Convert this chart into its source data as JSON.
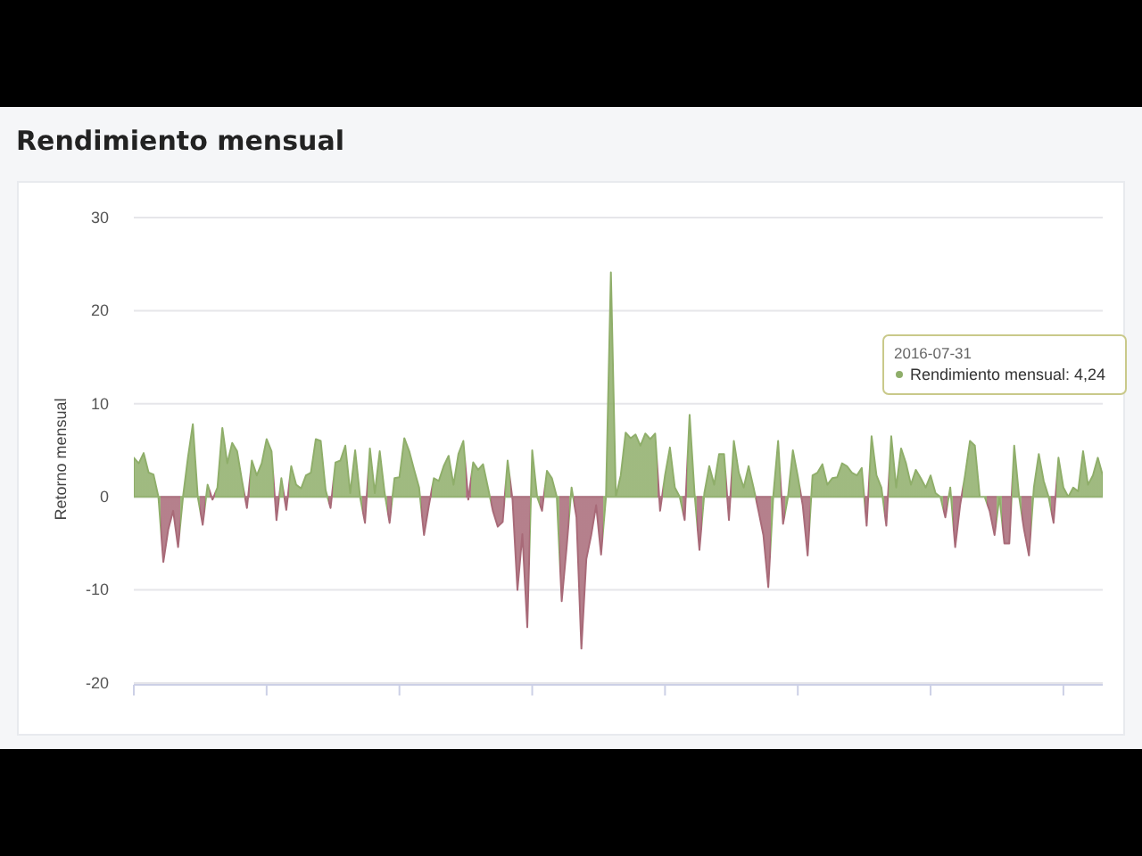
{
  "chart_data": {
    "type": "area",
    "title": "Rendimiento mensual",
    "ylabel": "Retorno mensual",
    "ylim": [
      -20,
      30
    ],
    "yticks": [
      -20,
      -10,
      0,
      10,
      20,
      30
    ],
    "grid": "y",
    "annotations": [
      "2016-07-31",
      "Rendimiento mensual: 4,24"
    ],
    "series": [
      {
        "colors": [
          "#8fae6a",
          "#8fae6a",
          "#8fae6a",
          "#8fae6a",
          "#8fae6a",
          "#8fae6a",
          "#a86a78",
          "#a86a78",
          "#a86a78",
          "#a86a78",
          "#8fae6a",
          "#8fae6a",
          "#8fae6a",
          "#8fae6a",
          "#a86a78",
          "#8fae6a",
          "#a86a78",
          "#8fae6a",
          "#8fae6a",
          "#8fae6a",
          "#8fae6a",
          "#8fae6a",
          "#8fae6a",
          "#a86a78",
          "#8fae6a",
          "#8fae6a",
          "#8fae6a",
          "#8fae6a",
          "#8fae6a",
          "#a86a78",
          "#8fae6a",
          "#a86a78",
          "#8fae6a",
          "#8fae6a",
          "#8fae6a",
          "#8fae6a",
          "#8fae6a",
          "#8fae6a",
          "#8fae6a",
          "#8fae6a",
          "#a86a78",
          "#8fae6a",
          "#8fae6a",
          "#8fae6a",
          "#8fae6a",
          "#8fae6a",
          "#8fae6a",
          "#a86a78",
          "#8fae6a",
          "#8fae6a",
          "#8fae6a",
          "#8fae6a",
          "#a86a78",
          "#8fae6a",
          "#8fae6a",
          "#8fae6a",
          "#8fae6a",
          "#8fae6a",
          "#8fae6a",
          "#a86a78",
          "#a86a78",
          "#8fae6a",
          "#8fae6a",
          "#8fae6a",
          "#8fae6a",
          "#8fae6a",
          "#8fae6a",
          "#8fae6a",
          "#a86a78",
          "#8fae6a",
          "#8fae6a",
          "#8fae6a",
          "#8fae6a",
          "#a86a78",
          "#a86a78",
          "#a86a78",
          "#8fae6a",
          "#a86a78",
          "#a86a78",
          "#a86a78",
          "#a86a78",
          "#8fae6a",
          "#8fae6a",
          "#a86a78",
          "#8fae6a",
          "#8fae6a",
          "#8fae6a",
          "#a86a78",
          "#a86a78",
          "#8fae6a",
          "#a86a78",
          "#a86a78",
          "#a86a78",
          "#a86a78",
          "#a86a78",
          "#a86a78",
          "#8fae6a",
          "#8fae6a",
          "#8fae6a",
          "#8fae6a",
          "#8fae6a",
          "#8fae6a",
          "#8fae6a",
          "#8fae6a",
          "#8fae6a",
          "#8fae6a",
          "#8fae6a",
          "#a86a78",
          "#8fae6a",
          "#8fae6a",
          "#8fae6a",
          "#8fae6a",
          "#a86a78",
          "#8fae6a",
          "#8fae6a",
          "#a86a78",
          "#8fae6a",
          "#8fae6a",
          "#8fae6a",
          "#8fae6a",
          "#8fae6a",
          "#a86a78",
          "#8fae6a",
          "#8fae6a",
          "#8fae6a",
          "#8fae6a",
          "#8fae6a",
          "#a86a78",
          "#a86a78",
          "#a86a78",
          "#8fae6a",
          "#8fae6a",
          "#a86a78",
          "#8fae6a",
          "#8fae6a",
          "#8fae6a",
          "#a86a78",
          "#a86a78",
          "#8fae6a",
          "#8fae6a",
          "#8fae6a",
          "#8fae6a",
          "#8fae6a",
          "#8fae6a",
          "#8fae6a",
          "#8fae6a",
          "#8fae6a",
          "#8fae6a",
          "#8fae6a",
          "#a86a78",
          "#8fae6a",
          "#8fae6a",
          "#8fae6a",
          "#a86a78",
          "#8fae6a",
          "#8fae6a",
          "#8fae6a",
          "#8fae6a",
          "#8fae6a",
          "#8fae6a",
          "#8fae6a",
          "#8fae6a",
          "#8fae6a",
          "#8fae6a",
          "#8fae6a",
          "#a86a78",
          "#8fae6a",
          "#a86a78",
          "#a86a78",
          "#8fae6a",
          "#8fae6a",
          "#8fae6a",
          "#8fae6a",
          "#8fae6a",
          "#a86a78",
          "#a86a78",
          "#8fae6a",
          "#a86a78",
          "#a86a78",
          "#8fae6a",
          "#8fae6a",
          "#a86a78",
          "#a86a78",
          "#8fae6a",
          "#8fae6a",
          "#8fae6a",
          "#8fae6a",
          "#a86a78",
          "#8fae6a",
          "#8fae6a",
          "#8fae6a",
          "#8fae6a",
          "#8fae6a",
          "#8fae6a",
          "#8fae6a",
          "#8fae6a",
          "#8fae6a",
          "#8fae6a"
        ],
        "values": [
          4.2,
          3.6,
          4.7,
          2.6,
          2.4,
          0,
          -7,
          -3.5,
          -1.5,
          -5.4,
          0,
          4.2,
          7.8,
          0,
          -3,
          1.3,
          -0.3,
          1,
          7.4,
          3.6,
          5.8,
          4.9,
          1.7,
          -1.2,
          3.9,
          2.3,
          3.6,
          6.2,
          4.9,
          -2.5,
          2,
          -1.4,
          3.3,
          1.3,
          0.9,
          2.3,
          2.6,
          6.2,
          6,
          0.7,
          -1.2,
          3.7,
          3.9,
          5.5,
          0.4,
          5,
          0,
          -2.8,
          5.2,
          0.4,
          4.9,
          0.4,
          -2.8,
          2,
          2.1,
          6.3,
          4.9,
          2.9,
          1,
          -4.1,
          -0.9,
          2,
          1.7,
          3.3,
          4.4,
          1.3,
          4.6,
          6,
          -0.3,
          3.7,
          2.9,
          3.5,
          1,
          -1.5,
          -3.2,
          -2.7,
          3.9,
          -0.3,
          -10,
          -4,
          -14,
          5,
          0,
          -1.5,
          2.8,
          2,
          0,
          -11.2,
          -5.4,
          1,
          -2.2,
          -16.3,
          -6.7,
          -4.1,
          -0.9,
          -6.2,
          0,
          24.1,
          0,
          2.3,
          6.9,
          6.3,
          6.7,
          5.5,
          6.8,
          6.2,
          6.8,
          -1.5,
          2.3,
          5.3,
          1,
          0,
          -2.5,
          8.8,
          0.4,
          -5.7,
          0.4,
          3.3,
          1.3,
          4.6,
          4.6,
          -2.5,
          6,
          2.6,
          1,
          3.3,
          1,
          -1.5,
          -4.1,
          -9.7,
          0,
          6,
          -2.9,
          0,
          5,
          2.2,
          -0.9,
          -6.3,
          2.3,
          2.6,
          3.5,
          1.3,
          2,
          2.1,
          3.6,
          3.3,
          2.6,
          2.3,
          3.1,
          -3.1,
          6.5,
          2.3,
          1,
          -3.1,
          6.5,
          1,
          5.2,
          3.6,
          1.3,
          2.9,
          2,
          1,
          2.3,
          0.4,
          0,
          -2.2,
          1,
          -5.4,
          -0.9,
          2.3,
          6,
          5.5,
          0,
          0,
          -1.5,
          -4.1,
          0,
          -5,
          -5,
          5.5,
          0,
          -3.5,
          -6.3,
          1,
          4.6,
          1.7,
          0,
          -2.8,
          4.2,
          1,
          0,
          1,
          0.6,
          4.9,
          1.3,
          2.3,
          4.2,
          2.3
        ]
      }
    ]
  }
}
